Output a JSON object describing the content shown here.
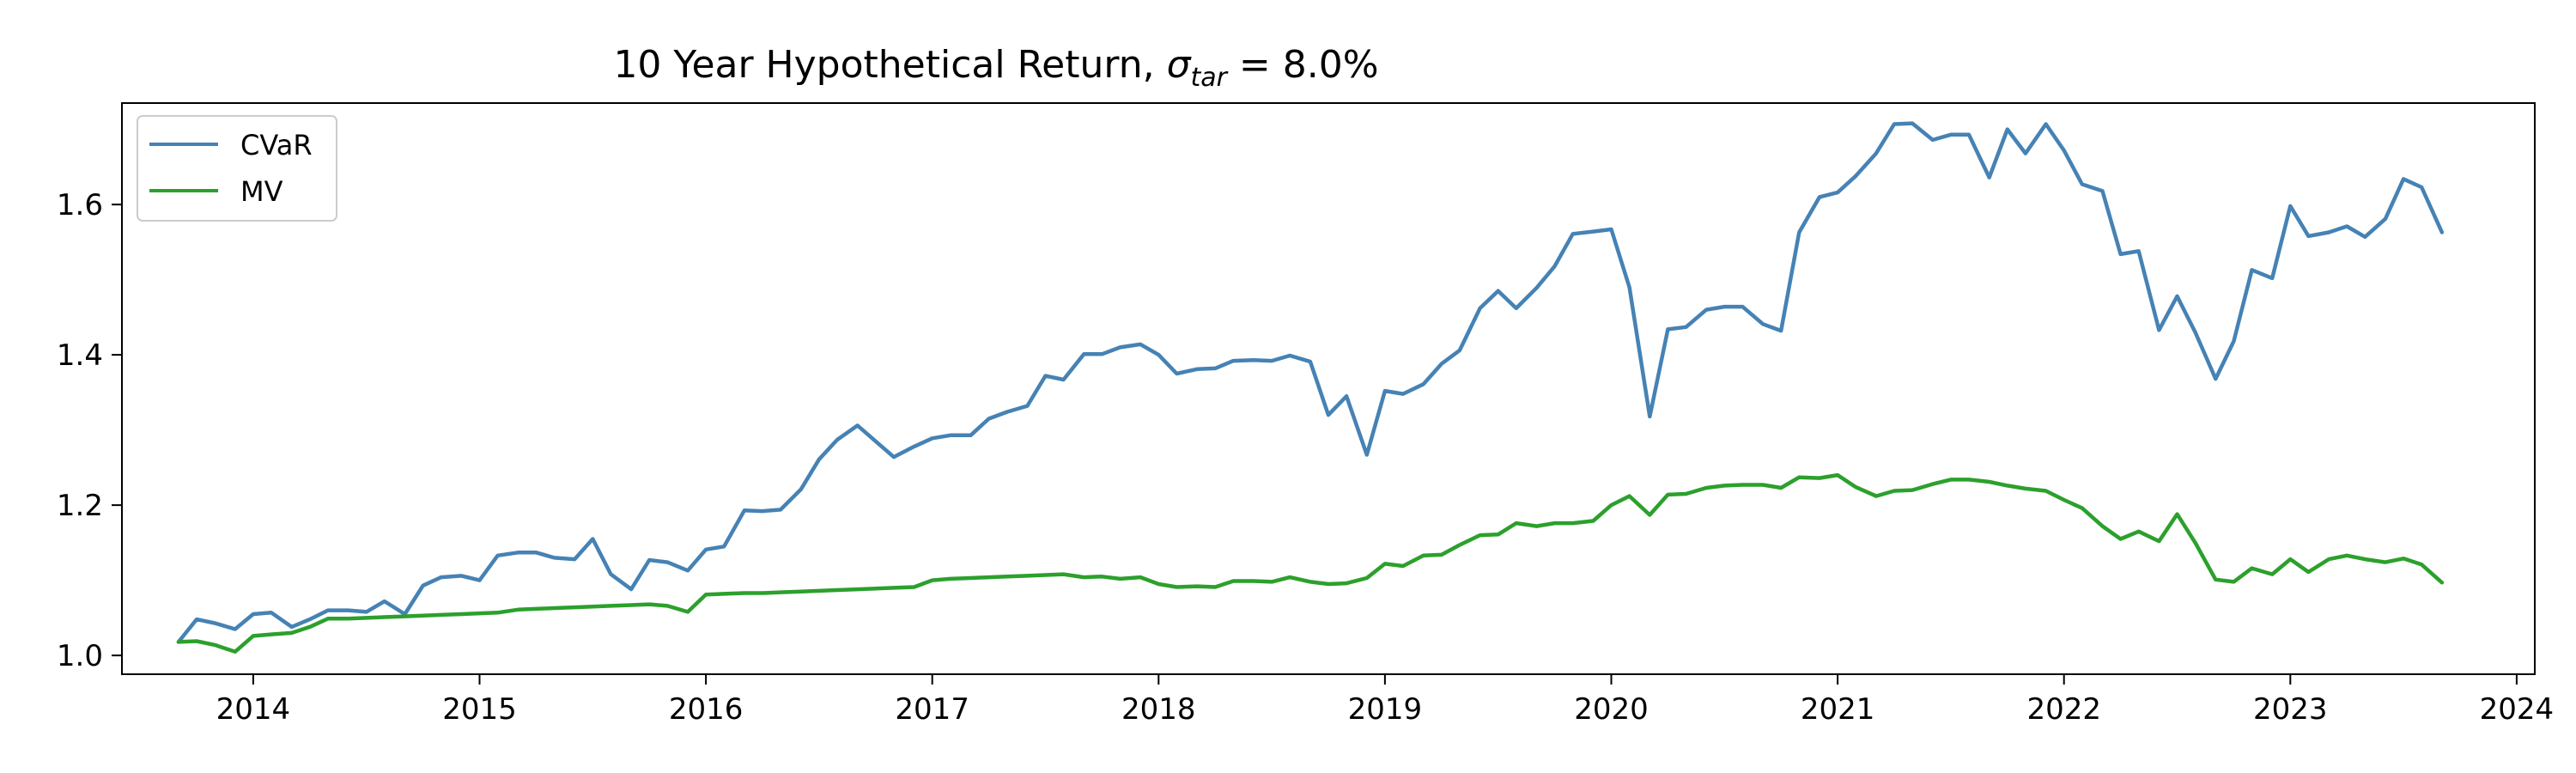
{
  "chart_data": {
    "type": "line",
    "title_main": "10 Year Hypothetical Return, ",
    "title_sigma": "σ",
    "title_sub": "tar",
    "title_end": " = 8.0%",
    "xlabel": "",
    "ylabel": "",
    "xlim": [
      2013.42,
      2024.08
    ],
    "ylim": [
      0.975,
      1.735
    ],
    "x_ticks": [
      2014,
      2015,
      2016,
      2017,
      2018,
      2019,
      2020,
      2021,
      2022,
      2023,
      2024
    ],
    "y_ticks": [
      1.0,
      1.2,
      1.4,
      1.6
    ],
    "grid": false,
    "legend_position": "top-left",
    "colors": {
      "CVaR": "#4682b4",
      "MV": "#2ca02c"
    },
    "series": [
      {
        "name": "CVaR",
        "color": "#4682b4",
        "points": [
          [
            2013.67,
            1.018
          ],
          [
            2013.75,
            1.048
          ],
          [
            2013.83,
            1.043
          ],
          [
            2013.92,
            1.035
          ],
          [
            2014.0,
            1.055
          ],
          [
            2014.08,
            1.057
          ],
          [
            2014.17,
            1.038
          ],
          [
            2014.25,
            1.048
          ],
          [
            2014.33,
            1.06
          ],
          [
            2014.42,
            1.06
          ],
          [
            2014.5,
            1.058
          ],
          [
            2014.58,
            1.072
          ],
          [
            2014.67,
            1.055
          ],
          [
            2014.75,
            1.093
          ],
          [
            2014.83,
            1.104
          ],
          [
            2014.92,
            1.106
          ],
          [
            2015.0,
            1.1
          ],
          [
            2015.08,
            1.133
          ],
          [
            2015.17,
            1.137
          ],
          [
            2015.25,
            1.137
          ],
          [
            2015.33,
            1.13
          ],
          [
            2015.42,
            1.128
          ],
          [
            2015.5,
            1.155
          ],
          [
            2015.58,
            1.108
          ],
          [
            2015.67,
            1.088
          ],
          [
            2015.75,
            1.127
          ],
          [
            2015.83,
            1.124
          ],
          [
            2015.92,
            1.113
          ],
          [
            2016.0,
            1.141
          ],
          [
            2016.08,
            1.145
          ],
          [
            2016.17,
            1.193
          ],
          [
            2016.25,
            1.192
          ],
          [
            2016.33,
            1.194
          ],
          [
            2016.42,
            1.221
          ],
          [
            2016.5,
            1.261
          ],
          [
            2016.58,
            1.287
          ],
          [
            2016.67,
            1.306
          ],
          [
            2016.75,
            1.285
          ],
          [
            2016.83,
            1.264
          ],
          [
            2016.92,
            1.278
          ],
          [
            2017.0,
            1.289
          ],
          [
            2017.08,
            1.293
          ],
          [
            2017.17,
            1.293
          ],
          [
            2017.25,
            1.315
          ],
          [
            2017.33,
            1.324
          ],
          [
            2017.42,
            1.332
          ],
          [
            2017.5,
            1.372
          ],
          [
            2017.58,
            1.367
          ],
          [
            2017.67,
            1.401
          ],
          [
            2017.75,
            1.401
          ],
          [
            2017.83,
            1.41
          ],
          [
            2017.92,
            1.414
          ],
          [
            2018.0,
            1.4
          ],
          [
            2018.08,
            1.375
          ],
          [
            2018.17,
            1.381
          ],
          [
            2018.25,
            1.382
          ],
          [
            2018.33,
            1.392
          ],
          [
            2018.42,
            1.393
          ],
          [
            2018.5,
            1.392
          ],
          [
            2018.58,
            1.399
          ],
          [
            2018.67,
            1.391
          ],
          [
            2018.75,
            1.32
          ],
          [
            2018.83,
            1.345
          ],
          [
            2018.92,
            1.267
          ],
          [
            2019.0,
            1.352
          ],
          [
            2019.08,
            1.348
          ],
          [
            2019.17,
            1.361
          ],
          [
            2019.25,
            1.388
          ],
          [
            2019.33,
            1.406
          ],
          [
            2019.42,
            1.462
          ],
          [
            2019.5,
            1.485
          ],
          [
            2019.58,
            1.462
          ],
          [
            2019.67,
            1.489
          ],
          [
            2019.75,
            1.518
          ],
          [
            2019.83,
            1.561
          ],
          [
            2019.92,
            1.564
          ],
          [
            2020.0,
            1.567
          ],
          [
            2020.08,
            1.49
          ],
          [
            2020.17,
            1.318
          ],
          [
            2020.25,
            1.434
          ],
          [
            2020.33,
            1.437
          ],
          [
            2020.42,
            1.46
          ],
          [
            2020.5,
            1.464
          ],
          [
            2020.58,
            1.464
          ],
          [
            2020.67,
            1.441
          ],
          [
            2020.75,
            1.432
          ],
          [
            2020.83,
            1.563
          ],
          [
            2020.92,
            1.61
          ],
          [
            2021.0,
            1.616
          ],
          [
            2021.08,
            1.638
          ],
          [
            2021.17,
            1.668
          ],
          [
            2021.25,
            1.707
          ],
          [
            2021.33,
            1.708
          ],
          [
            2021.42,
            1.686
          ],
          [
            2021.5,
            1.693
          ],
          [
            2021.58,
            1.693
          ],
          [
            2021.67,
            1.636
          ],
          [
            2021.75,
            1.7
          ],
          [
            2021.83,
            1.668
          ],
          [
            2021.92,
            1.707
          ],
          [
            2022.0,
            1.672
          ],
          [
            2022.08,
            1.627
          ],
          [
            2022.17,
            1.618
          ],
          [
            2022.25,
            1.534
          ],
          [
            2022.33,
            1.538
          ],
          [
            2022.42,
            1.433
          ],
          [
            2022.5,
            1.478
          ],
          [
            2022.58,
            1.43
          ],
          [
            2022.67,
            1.368
          ],
          [
            2022.75,
            1.418
          ],
          [
            2022.83,
            1.513
          ],
          [
            2022.92,
            1.502
          ],
          [
            2023.0,
            1.598
          ],
          [
            2023.08,
            1.558
          ],
          [
            2023.17,
            1.563
          ],
          [
            2023.25,
            1.571
          ],
          [
            2023.33,
            1.557
          ],
          [
            2023.42,
            1.581
          ],
          [
            2023.5,
            1.634
          ],
          [
            2023.58,
            1.623
          ],
          [
            2023.67,
            1.563
          ]
        ]
      },
      {
        "name": "MV",
        "color": "#2ca02c",
        "points": [
          [
            2013.67,
            1.018
          ],
          [
            2013.75,
            1.019
          ],
          [
            2013.83,
            1.014
          ],
          [
            2013.92,
            1.005
          ],
          [
            2014.0,
            1.026
          ],
          [
            2014.08,
            1.028
          ],
          [
            2014.17,
            1.03
          ],
          [
            2014.25,
            1.038
          ],
          [
            2014.33,
            1.049
          ],
          [
            2014.42,
            1.049
          ],
          [
            2014.5,
            1.05
          ],
          [
            2014.58,
            1.051
          ],
          [
            2014.67,
            1.052
          ],
          [
            2014.75,
            1.053
          ],
          [
            2014.83,
            1.054
          ],
          [
            2014.92,
            1.055
          ],
          [
            2015.0,
            1.056
          ],
          [
            2015.08,
            1.057
          ],
          [
            2015.17,
            1.061
          ],
          [
            2015.25,
            1.062
          ],
          [
            2015.33,
            1.063
          ],
          [
            2015.42,
            1.064
          ],
          [
            2015.5,
            1.065
          ],
          [
            2015.58,
            1.066
          ],
          [
            2015.67,
            1.067
          ],
          [
            2015.75,
            1.068
          ],
          [
            2015.83,
            1.066
          ],
          [
            2015.92,
            1.058
          ],
          [
            2016.0,
            1.081
          ],
          [
            2016.08,
            1.082
          ],
          [
            2016.17,
            1.083
          ],
          [
            2016.25,
            1.083
          ],
          [
            2016.33,
            1.084
          ],
          [
            2016.42,
            1.085
          ],
          [
            2016.5,
            1.086
          ],
          [
            2016.58,
            1.087
          ],
          [
            2016.67,
            1.088
          ],
          [
            2016.75,
            1.089
          ],
          [
            2016.83,
            1.09
          ],
          [
            2016.92,
            1.091
          ],
          [
            2017.0,
            1.1
          ],
          [
            2017.08,
            1.102
          ],
          [
            2017.17,
            1.103
          ],
          [
            2017.25,
            1.104
          ],
          [
            2017.33,
            1.105
          ],
          [
            2017.42,
            1.106
          ],
          [
            2017.5,
            1.107
          ],
          [
            2017.58,
            1.108
          ],
          [
            2017.67,
            1.104
          ],
          [
            2017.75,
            1.105
          ],
          [
            2017.83,
            1.102
          ],
          [
            2017.92,
            1.104
          ],
          [
            2018.0,
            1.095
          ],
          [
            2018.08,
            1.091
          ],
          [
            2018.17,
            1.092
          ],
          [
            2018.25,
            1.091
          ],
          [
            2018.33,
            1.099
          ],
          [
            2018.42,
            1.099
          ],
          [
            2018.5,
            1.098
          ],
          [
            2018.58,
            1.104
          ],
          [
            2018.67,
            1.098
          ],
          [
            2018.75,
            1.095
          ],
          [
            2018.83,
            1.096
          ],
          [
            2018.92,
            1.103
          ],
          [
            2019.0,
            1.122
          ],
          [
            2019.08,
            1.119
          ],
          [
            2019.17,
            1.133
          ],
          [
            2019.25,
            1.134
          ],
          [
            2019.33,
            1.147
          ],
          [
            2019.42,
            1.16
          ],
          [
            2019.5,
            1.161
          ],
          [
            2019.58,
            1.176
          ],
          [
            2019.67,
            1.172
          ],
          [
            2019.75,
            1.176
          ],
          [
            2019.83,
            1.176
          ],
          [
            2019.92,
            1.179
          ],
          [
            2020.0,
            1.2
          ],
          [
            2020.08,
            1.212
          ],
          [
            2020.17,
            1.187
          ],
          [
            2020.25,
            1.214
          ],
          [
            2020.33,
            1.215
          ],
          [
            2020.42,
            1.223
          ],
          [
            2020.5,
            1.226
          ],
          [
            2020.58,
            1.227
          ],
          [
            2020.67,
            1.227
          ],
          [
            2020.75,
            1.223
          ],
          [
            2020.83,
            1.237
          ],
          [
            2020.92,
            1.236
          ],
          [
            2021.0,
            1.24
          ],
          [
            2021.08,
            1.224
          ],
          [
            2021.17,
            1.212
          ],
          [
            2021.25,
            1.219
          ],
          [
            2021.33,
            1.22
          ],
          [
            2021.42,
            1.228
          ],
          [
            2021.5,
            1.234
          ],
          [
            2021.58,
            1.234
          ],
          [
            2021.67,
            1.231
          ],
          [
            2021.75,
            1.226
          ],
          [
            2021.83,
            1.222
          ],
          [
            2021.92,
            1.219
          ],
          [
            2022.0,
            1.207
          ],
          [
            2022.08,
            1.196
          ],
          [
            2022.17,
            1.172
          ],
          [
            2022.25,
            1.155
          ],
          [
            2022.33,
            1.165
          ],
          [
            2022.42,
            1.152
          ],
          [
            2022.5,
            1.188
          ],
          [
            2022.58,
            1.15
          ],
          [
            2022.67,
            1.101
          ],
          [
            2022.75,
            1.098
          ],
          [
            2022.83,
            1.116
          ],
          [
            2022.92,
            1.108
          ],
          [
            2023.0,
            1.128
          ],
          [
            2023.08,
            1.111
          ],
          [
            2023.17,
            1.128
          ],
          [
            2023.25,
            1.133
          ],
          [
            2023.33,
            1.128
          ],
          [
            2023.42,
            1.124
          ],
          [
            2023.5,
            1.129
          ],
          [
            2023.58,
            1.121
          ],
          [
            2023.67,
            1.097
          ]
        ]
      }
    ]
  }
}
